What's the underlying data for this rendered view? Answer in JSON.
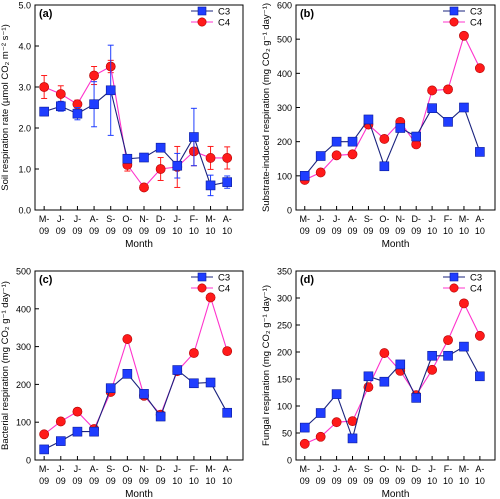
{
  "figure": {
    "colors": {
      "C3": "#1f3dff",
      "C4": "#ff1a1a",
      "C3_line": "#1a237e",
      "C4_line": "#ff33cc",
      "axis": "#000000"
    }
  },
  "chart_data": [
    {
      "type": "line",
      "panel_label": "(a)",
      "ylabel": "Soil respiration rate  (µmol CO₂ m⁻² s⁻¹)",
      "xlabel": "Month",
      "categories": [
        "M-09",
        "J-09",
        "J-09",
        "A-09",
        "S-09",
        "O-09",
        "N-09",
        "D-09",
        "J-10",
        "F-10",
        "M-10",
        "A-10"
      ],
      "ylim": [
        0,
        5
      ],
      "yticks": [
        "0.0",
        "1.0",
        "2.0",
        "3.0",
        "4.0",
        "5.0"
      ],
      "legend": "top-right",
      "series": [
        {
          "name": "C3",
          "values": [
            2.4,
            2.53,
            2.35,
            2.58,
            2.92,
            1.25,
            1.28,
            1.52,
            1.08,
            1.78,
            0.6,
            0.68
          ],
          "err": [
            0.1,
            0.12,
            0.15,
            0.55,
            1.1,
            0.1,
            0.08,
            0.1,
            0.3,
            0.7,
            0.25,
            0.15
          ]
        },
        {
          "name": "C4",
          "values": [
            3.0,
            2.83,
            2.58,
            3.28,
            3.5,
            1.1,
            0.55,
            1.0,
            1.05,
            1.43,
            1.27,
            1.27
          ],
          "err": [
            0.28,
            0.2,
            0.1,
            0.22,
            0.15,
            0.15,
            0.05,
            0.28,
            0.5,
            0.35,
            0.28,
            0.27
          ]
        }
      ]
    },
    {
      "type": "line",
      "panel_label": "(b)",
      "ylabel": "Substrate-induced respiration (mg CO₂ g⁻¹ day⁻¹)",
      "xlabel": "Month",
      "categories": [
        "M-09",
        "J-09",
        "J-09",
        "A-09",
        "S-09",
        "O-09",
        "N-09",
        "D-09",
        "J-10",
        "F-10",
        "M-10",
        "A-10"
      ],
      "ylim": [
        0,
        600
      ],
      "yticks": [
        "0",
        "100",
        "200",
        "300",
        "400",
        "500",
        "600"
      ],
      "legend": "top-right",
      "series": [
        {
          "name": "C3",
          "values": [
            100,
            158,
            200,
            200,
            265,
            128,
            240,
            215,
            298,
            258,
            300,
            170
          ]
        },
        {
          "name": "C4",
          "values": [
            88,
            110,
            160,
            163,
            250,
            208,
            258,
            192,
            350,
            353,
            510,
            415
          ]
        }
      ]
    },
    {
      "type": "line",
      "panel_label": "(c)",
      "ylabel": "Bacterial respiration (mg CO₂ g⁻¹ day⁻¹)",
      "xlabel": "Month",
      "categories": [
        "M-09",
        "J-09",
        "J-09",
        "A-09",
        "S-09",
        "O-09",
        "N-09",
        "D-09",
        "J-10",
        "F-10",
        "M-10",
        "A-10"
      ],
      "ylim": [
        0,
        500
      ],
      "yticks": [
        "0",
        "100",
        "200",
        "300",
        "400",
        "500"
      ],
      "legend": "top-right",
      "series": [
        {
          "name": "C3",
          "values": [
            28,
            50,
            75,
            75,
            190,
            228,
            175,
            115,
            238,
            203,
            205,
            125
          ]
        },
        {
          "name": "C4",
          "values": [
            68,
            102,
            128,
            82,
            180,
            320,
            170,
            120,
            235,
            283,
            430,
            288
          ]
        }
      ]
    },
    {
      "type": "line",
      "panel_label": "(d)",
      "ylabel": "Fungal respiration (mg CO₂ g⁻¹ day⁻¹)",
      "xlabel": "Month",
      "categories": [
        "M-09",
        "J-09",
        "J-09",
        "A-09",
        "S-09",
        "O-09",
        "N-09",
        "D-09",
        "J-10",
        "F-10",
        "M-10",
        "A-10"
      ],
      "ylim": [
        0,
        350
      ],
      "yticks": [
        "0",
        "50",
        "100",
        "150",
        "200",
        "250",
        "300",
        "350"
      ],
      "legend": "top-right",
      "series": [
        {
          "name": "C3",
          "values": [
            60,
            87,
            122,
            40,
            155,
            145,
            177,
            115,
            193,
            193,
            210,
            155
          ]
        },
        {
          "name": "C4",
          "values": [
            30,
            43,
            70,
            72,
            135,
            198,
            165,
            120,
            167,
            222,
            290,
            230
          ]
        }
      ]
    }
  ]
}
